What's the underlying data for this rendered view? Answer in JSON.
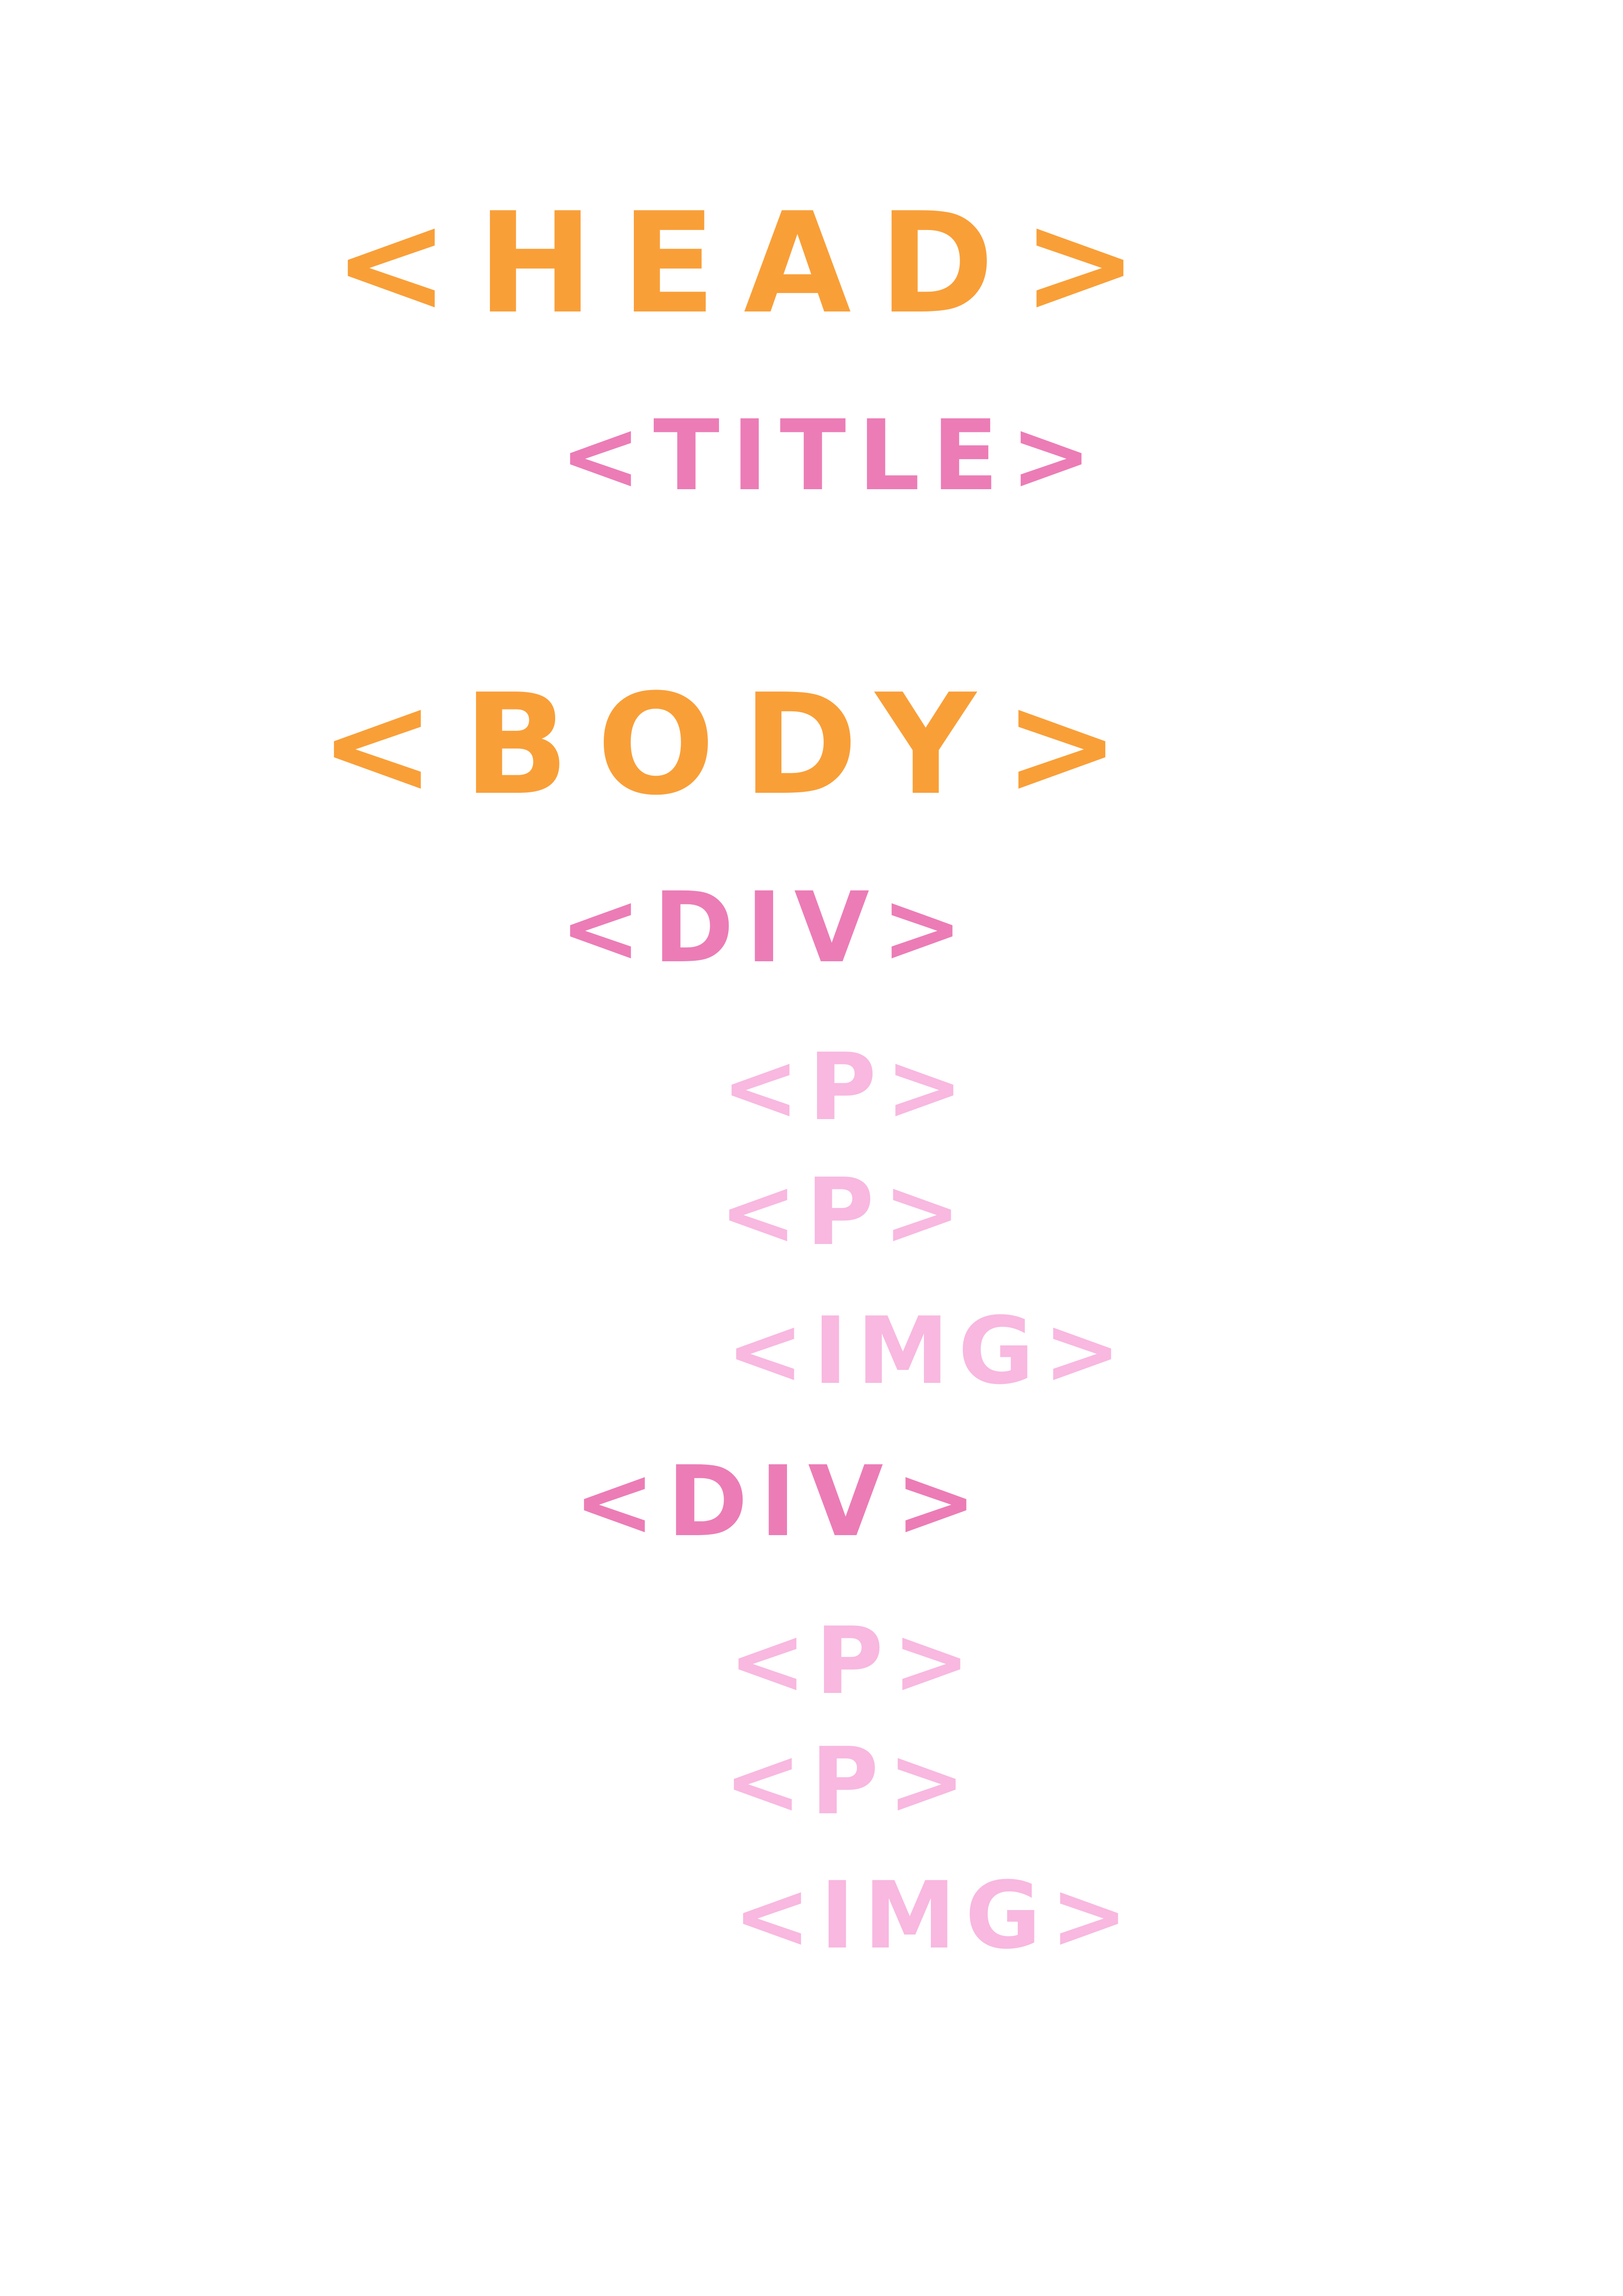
{
  "colors": {
    "level0": "#F99F38",
    "level1": "#EC7CB6",
    "level2": "#F8B8E0",
    "background": "#FFFFFF"
  },
  "tags": [
    {
      "id": "head",
      "label": "<HEAD>",
      "level": 0
    },
    {
      "id": "title",
      "label": "<TITLE>",
      "level": 1
    },
    {
      "id": "body",
      "label": "<BODY>",
      "level": 0
    },
    {
      "id": "div1",
      "label": "<DIV>",
      "level": 1
    },
    {
      "id": "p1",
      "label": "<P>",
      "level": 2
    },
    {
      "id": "p2",
      "label": "<P>",
      "level": 2
    },
    {
      "id": "img1",
      "label": "<IMG>",
      "level": 2
    },
    {
      "id": "div2",
      "label": "<DIV>",
      "level": 1
    },
    {
      "id": "p3",
      "label": "<P>",
      "level": 2
    },
    {
      "id": "p4",
      "label": "<P>",
      "level": 2
    },
    {
      "id": "img2",
      "label": "<IMG>",
      "level": 2
    }
  ]
}
